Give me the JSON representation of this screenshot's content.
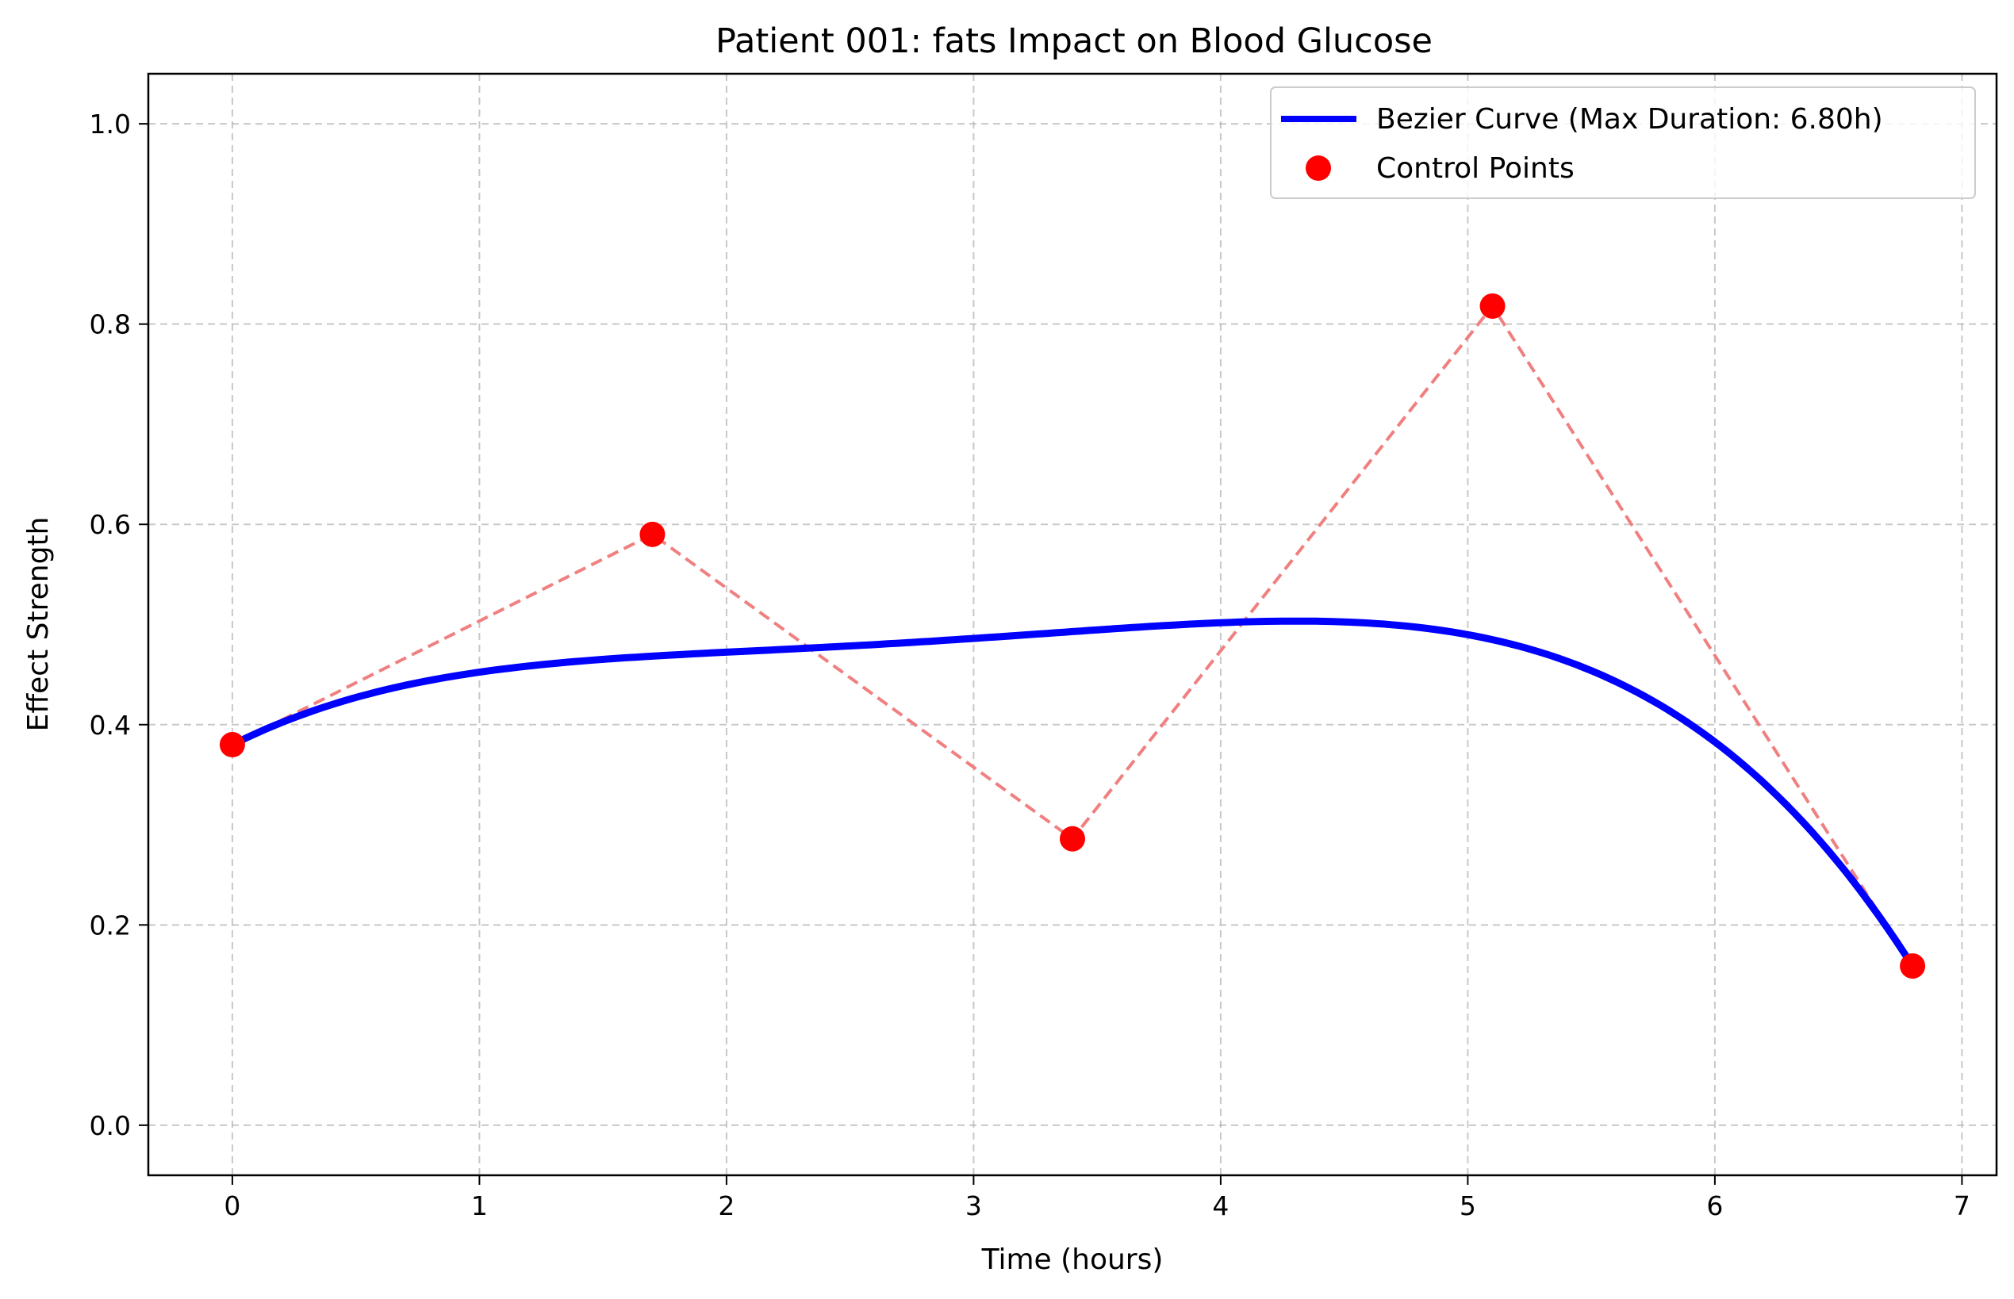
{
  "chart_data": {
    "type": "line",
    "title": "Patient 001: fats Impact on Blood Glucose",
    "xlabel": "Time (hours)",
    "ylabel": "Effect Strength",
    "xlim": [
      -0.34,
      7.14
    ],
    "ylim": [
      -0.05,
      1.05
    ],
    "xticks": [
      0,
      1,
      2,
      3,
      4,
      5,
      6,
      7
    ],
    "xtick_labels": [
      "0",
      "1",
      "2",
      "3",
      "4",
      "5",
      "6",
      "7"
    ],
    "yticks": [
      0.0,
      0.2,
      0.4,
      0.6,
      0.8,
      1.0
    ],
    "ytick_labels": [
      "0.0",
      "0.2",
      "0.4",
      "0.6",
      "0.8",
      "1.0"
    ],
    "grid": true,
    "legend_position": "top-right",
    "series": [
      {
        "name": "Bezier Curve (Max Duration: 6.80h)",
        "kind": "bezier",
        "color": "#0000ff"
      },
      {
        "name": "Control Points",
        "kind": "points",
        "color": "#ff0000",
        "connector_color": "#f08080",
        "x": [
          0,
          1.7,
          3.4,
          5.1,
          6.8
        ],
        "y": [
          0.38,
          0.59,
          0.286,
          0.818,
          0.159
        ]
      }
    ]
  }
}
